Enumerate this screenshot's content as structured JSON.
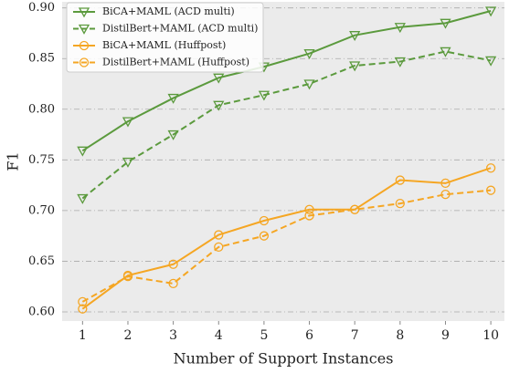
{
  "chart_data": {
    "type": "line",
    "x": [
      1,
      2,
      3,
      4,
      5,
      6,
      7,
      8,
      9,
      10
    ],
    "xlabel": "Number of Support Instances",
    "ylabel": "F1",
    "xlim": [
      0.55,
      10.3
    ],
    "ylim": [
      0.591,
      0.906
    ],
    "xticks": [
      1,
      2,
      3,
      4,
      5,
      6,
      7,
      8,
      9,
      10
    ],
    "yticks": [
      {
        "value": 0.6,
        "label": "0.60"
      },
      {
        "value": 0.65,
        "label": "0.65"
      },
      {
        "value": 0.7,
        "label": "0.70"
      },
      {
        "value": 0.75,
        "label": "0.75"
      },
      {
        "value": 0.8,
        "label": "0.80"
      },
      {
        "value": 0.85,
        "label": "0.85"
      },
      {
        "value": 0.9,
        "label": "0.90"
      }
    ],
    "grid": true,
    "legend": "upper left",
    "series": [
      {
        "name": "BiCA+MAML (ACD multi)",
        "color": "#5b9a3d",
        "marker": "triangle-down",
        "dash": false,
        "values": [
          0.759,
          0.788,
          0.811,
          0.831,
          0.842,
          0.855,
          0.873,
          0.881,
          0.885,
          0.897
        ]
      },
      {
        "name": "DistilBert+MAML (ACD multi)",
        "color": "#5b9a3d",
        "marker": "triangle-down",
        "dash": true,
        "values": [
          0.712,
          0.748,
          0.775,
          0.804,
          0.814,
          0.825,
          0.843,
          0.847,
          0.857,
          0.848
        ]
      },
      {
        "name": "BiCA+MAML (Huffpost)",
        "color": "#f5a623",
        "marker": "circle",
        "dash": false,
        "values": [
          0.603,
          0.636,
          0.647,
          0.676,
          0.69,
          0.701,
          0.701,
          0.73,
          0.727,
          0.742
        ]
      },
      {
        "name": "DistilBert+MAML (Huffpost)",
        "color": "#f5a623",
        "marker": "circle",
        "dash": true,
        "values": [
          0.61,
          0.635,
          0.628,
          0.664,
          0.675,
          0.695,
          0.701,
          0.707,
          0.716,
          0.72
        ]
      }
    ]
  }
}
